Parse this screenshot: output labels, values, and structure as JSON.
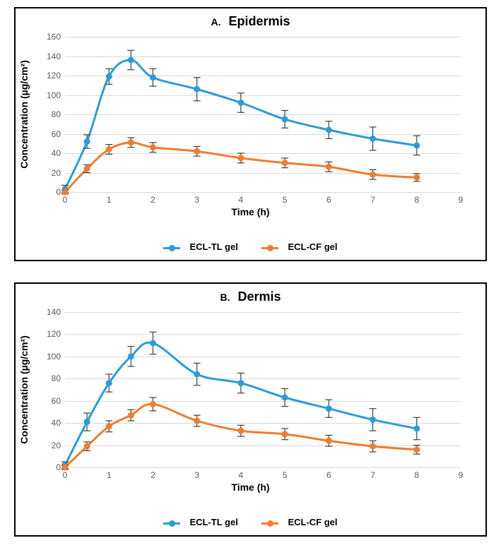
{
  "colors": {
    "series_tl": "#2e9bd6",
    "series_cf": "#ed7d31",
    "grid": "#d9d9d9",
    "axis": "#808080",
    "error_bar": "#404040",
    "text": "#000000",
    "tick_text": "#595959",
    "background": "#ffffff"
  },
  "typography": {
    "title_fontsize": 18,
    "axis_label_fontsize": 14,
    "tick_fontsize": 12,
    "legend_fontsize": 13,
    "font_family": "Arial"
  },
  "legend": {
    "items": [
      {
        "label": "ECL-TL gel",
        "color_key": "series_tl"
      },
      {
        "label": "ECL-CF gel",
        "color_key": "series_cf"
      }
    ]
  },
  "axes": {
    "xlabel": "Time (h)",
    "ylabel": "Concentration (µg/cm²)",
    "xlim": [
      0,
      9
    ],
    "x_ticks": [
      0,
      1,
      2,
      3,
      4,
      5,
      6,
      7,
      8,
      9
    ]
  },
  "marker": {
    "radius": 4.5,
    "line_width": 3,
    "error_cap": 5,
    "error_width": 1.2
  },
  "panels": [
    {
      "id": "A",
      "letter": "A.",
      "title": "Epidermis",
      "ylim": [
        0,
        160
      ],
      "y_ticks": [
        0,
        20,
        40,
        60,
        80,
        100,
        120,
        140,
        160
      ],
      "series": [
        {
          "name": "ECL-TL gel",
          "color_key": "series_tl",
          "x": [
            0,
            0.5,
            1,
            1.5,
            2,
            3,
            4,
            5,
            6,
            7,
            8
          ],
          "y": [
            3,
            52,
            119,
            136,
            118,
            106,
            92,
            75,
            64,
            55,
            48
          ],
          "err": [
            4,
            7,
            8,
            10,
            9,
            12,
            10,
            9,
            9,
            12,
            10
          ]
        },
        {
          "name": "ECL-CF gel",
          "color_key": "series_cf",
          "x": [
            0,
            0.5,
            1,
            1.5,
            2,
            3,
            4,
            5,
            6,
            7,
            8
          ],
          "y": [
            0,
            24,
            44,
            51,
            46,
            42,
            35,
            30,
            26,
            18,
            15
          ],
          "err": [
            2,
            4,
            5,
            5,
            5,
            5,
            5,
            5,
            5,
            5,
            4
          ]
        }
      ]
    },
    {
      "id": "B",
      "letter": "B.",
      "title": "Dermis",
      "ylim": [
        0,
        140
      ],
      "y_ticks": [
        0,
        20,
        40,
        60,
        80,
        100,
        120,
        140
      ],
      "series": [
        {
          "name": "ECL-TL gel",
          "color_key": "series_tl",
          "x": [
            0,
            0.5,
            1,
            1.5,
            2,
            3,
            4,
            5,
            6,
            7,
            8
          ],
          "y": [
            2,
            41,
            76,
            100,
            112,
            84,
            76,
            63,
            53,
            43,
            35
          ],
          "err": [
            3,
            8,
            8,
            9,
            10,
            10,
            9,
            8,
            8,
            10,
            10
          ]
        },
        {
          "name": "ECL-CF gel",
          "color_key": "series_cf",
          "x": [
            0,
            0.5,
            1,
            1.5,
            2,
            3,
            4,
            5,
            6,
            7,
            8
          ],
          "y": [
            0,
            19,
            37,
            47,
            57,
            42,
            33,
            30,
            24,
            19,
            16
          ],
          "err": [
            2,
            4,
            5,
            5,
            6,
            5,
            5,
            5,
            5,
            5,
            4
          ]
        }
      ]
    }
  ]
}
